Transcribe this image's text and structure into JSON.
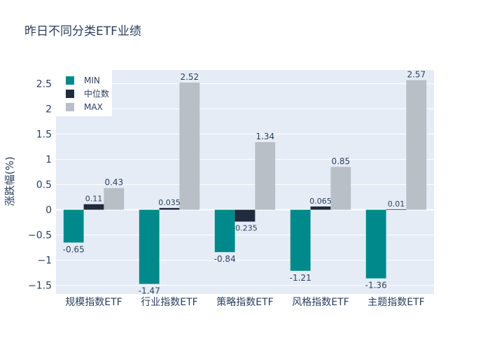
{
  "chart_data": {
    "type": "bar",
    "title": "昨日不同分类ETF业绩",
    "xlabel": "",
    "ylabel": "涨跌幅(%)",
    "categories": [
      "规模指数ETF",
      "行业指数ETF",
      "策略指数ETF",
      "风格指数ETF",
      "主题指数ETF"
    ],
    "series": [
      {
        "name": "MIN",
        "color": "#00898a",
        "values": [
          -0.65,
          -1.47,
          -0.84,
          -1.21,
          -1.36
        ],
        "labels": [
          "-0.65",
          "-1.47",
          "-0.84",
          "-1.21",
          "-1.36"
        ]
      },
      {
        "name": "中位数",
        "color": "#222b3d",
        "values": [
          0.11,
          0.035,
          -0.235,
          0.065,
          0.01
        ],
        "labels": [
          "0.11",
          "0.035",
          "-0.235",
          "0.065",
          "0.01"
        ]
      },
      {
        "name": "MAX",
        "color": "#b8bfc7",
        "values": [
          0.43,
          2.52,
          1.34,
          0.85,
          2.57
        ],
        "labels": [
          "0.43",
          "2.52",
          "1.34",
          "0.85",
          "2.57"
        ]
      }
    ],
    "ylim": [
      -1.67,
      2.77
    ],
    "yticks": [
      -1.5,
      -1,
      -0.5,
      0,
      0.5,
      1,
      1.5,
      2,
      2.5
    ],
    "ytick_labels": [
      "−1.5",
      "−1",
      "−0.5",
      "0",
      "0.5",
      "1",
      "1.5",
      "2",
      "2.5"
    ],
    "grid": true,
    "legend_position": "top-left",
    "plot_background": "#e5ecf6",
    "text_color": "#2a3f5f"
  }
}
